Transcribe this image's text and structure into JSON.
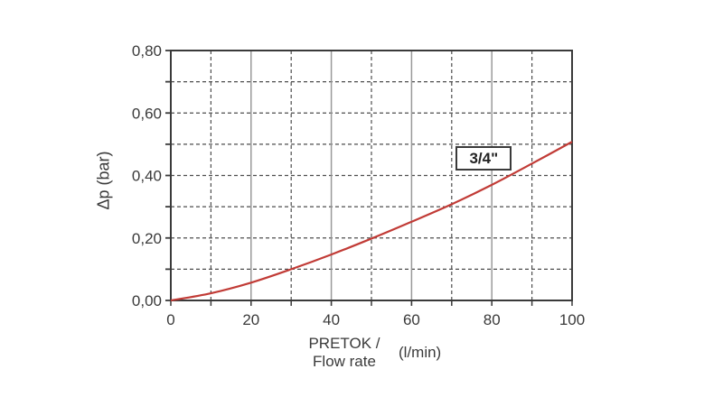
{
  "page": {
    "background": "#ffffff"
  },
  "chart_data": {
    "type": "line",
    "title": "",
    "xlabel": {
      "line1": "PRETOK /",
      "line2": "Flow rate",
      "unit": "(l/min)"
    },
    "ylabel": "Δp (bar)",
    "xlim": [
      0,
      100
    ],
    "ylim": [
      0,
      0.8
    ],
    "x_ticks": {
      "major": [
        0,
        20,
        40,
        60,
        80,
        100
      ],
      "minor": [
        10,
        30,
        50,
        70,
        90
      ],
      "labels": [
        "0",
        "20",
        "40",
        "60",
        "80",
        "100"
      ]
    },
    "y_ticks": {
      "label_values": [
        0,
        0.2,
        0.4,
        0.6,
        0.8
      ],
      "labels": [
        "0,00",
        "0,20",
        "0,40",
        "0,60",
        "0,80"
      ],
      "minor_step": 0.1
    },
    "grid": {
      "shown": true,
      "horizontal_style": "dashed",
      "vertical_major_style": "solid",
      "vertical_minor_style": "dashed"
    },
    "series": [
      {
        "name": "3/4\"",
        "color": "#c13b36",
        "points": [
          [
            0,
            0
          ],
          [
            10,
            0.023
          ],
          [
            20,
            0.057
          ],
          [
            30,
            0.1
          ],
          [
            40,
            0.147
          ],
          [
            50,
            0.198
          ],
          [
            60,
            0.252
          ],
          [
            70,
            0.308
          ],
          [
            80,
            0.37
          ],
          [
            90,
            0.438
          ],
          [
            100,
            0.508
          ]
        ]
      }
    ],
    "annotation": {
      "text": "3/4\"",
      "x": 78,
      "y": 0.455
    }
  },
  "colors": {
    "border": "#3a3a3a",
    "grid_solid": "#9a9a9a",
    "grid_dashed": "#4d4d4d",
    "text": "#3a3a3a",
    "curve": "#c13b36",
    "annotation_bg": "#ffffff",
    "annotation_border": "#3a3a3a"
  }
}
